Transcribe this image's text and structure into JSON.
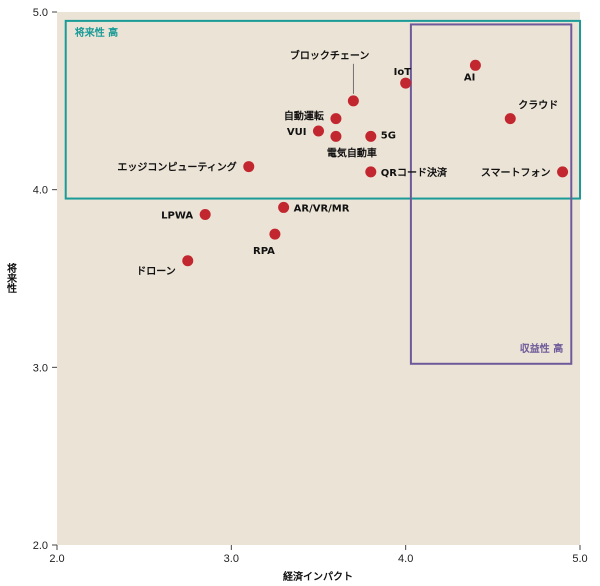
{
  "chart_data": {
    "type": "scatter",
    "xlabel": "経済インパクト",
    "ylabel": "将来性",
    "xlim": [
      2.0,
      5.0
    ],
    "ylim": [
      2.0,
      5.0
    ],
    "x_ticks": [
      "2.0",
      "3.0",
      "4.0",
      "5.0"
    ],
    "y_ticks": [
      "2.0",
      "3.0",
      "4.0",
      "5.0"
    ],
    "grid": false,
    "colors": {
      "plot_bg": "#ebe3d6",
      "point": "#c2262e",
      "future_region": "#1a9b98",
      "profit_region": "#6d5a9a"
    },
    "regions": [
      {
        "label": "将来性 高",
        "x": [
          2.05,
          5.0
        ],
        "y": [
          3.95,
          4.95
        ],
        "color_key": "future_region"
      },
      {
        "label": "収益性 高",
        "x": [
          4.03,
          4.95
        ],
        "y": [
          3.02,
          4.93
        ],
        "color_key": "profit_region"
      }
    ],
    "points": [
      {
        "label": "AI",
        "x": 4.4,
        "y": 4.7
      },
      {
        "label": "IoT",
        "x": 4.0,
        "y": 4.6
      },
      {
        "label": "ブロックチェーン",
        "x": 3.7,
        "y": 4.5
      },
      {
        "label": "クラウド",
        "x": 4.6,
        "y": 4.4
      },
      {
        "label": "自動運転",
        "x": 3.6,
        "y": 4.4
      },
      {
        "label": "VUI",
        "x": 3.5,
        "y": 4.33
      },
      {
        "label": "電気自動車",
        "x": 3.6,
        "y": 4.3
      },
      {
        "label": "5G",
        "x": 3.8,
        "y": 4.3
      },
      {
        "label": "エッジコンピューティング",
        "x": 3.1,
        "y": 4.13
      },
      {
        "label": "QRコード決済",
        "x": 3.8,
        "y": 4.1
      },
      {
        "label": "スマートフォン",
        "x": 4.9,
        "y": 4.1
      },
      {
        "label": "AR/VR/MR",
        "x": 3.3,
        "y": 3.9
      },
      {
        "label": "LPWA",
        "x": 2.85,
        "y": 3.86
      },
      {
        "label": "RPA",
        "x": 3.25,
        "y": 3.75
      },
      {
        "label": "ドローン",
        "x": 2.75,
        "y": 3.6
      }
    ]
  }
}
